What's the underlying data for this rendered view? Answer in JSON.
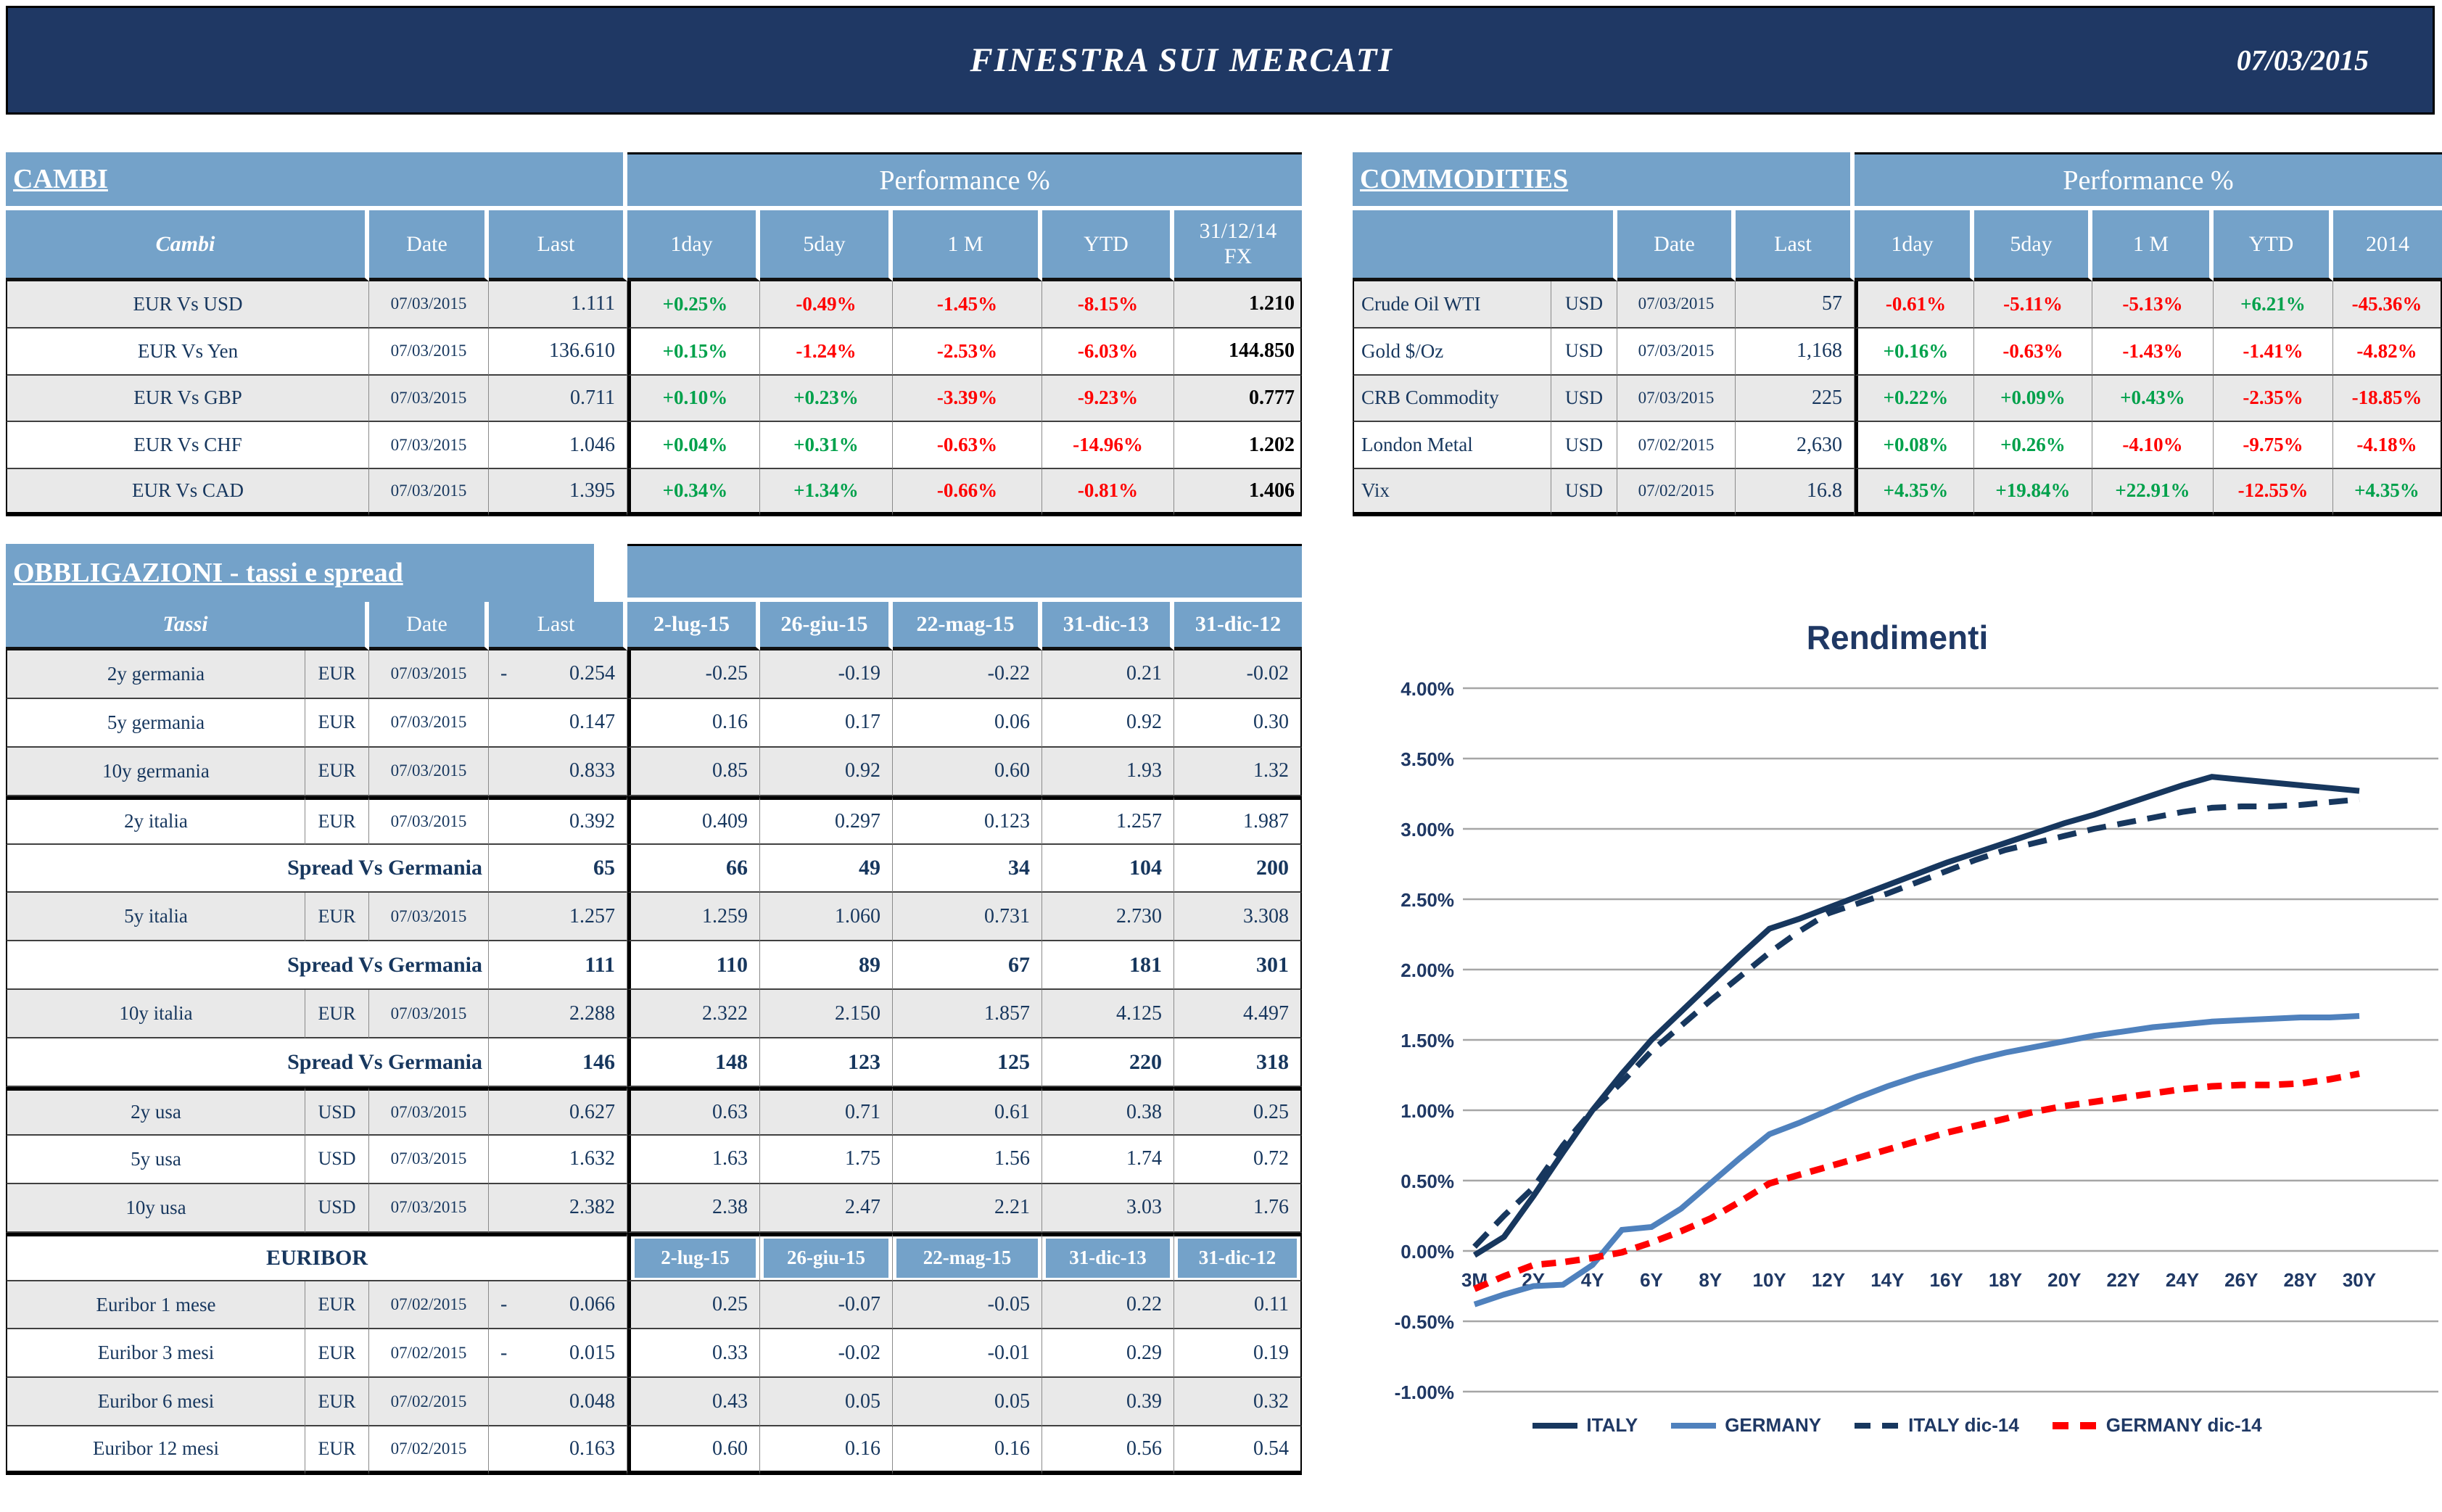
{
  "header": {
    "title": "FINESTRA SUI MERCATI",
    "date": "07/03/2015"
  },
  "colors": {
    "banner": "#1F3864",
    "header_blue": "#74A2C9",
    "row_shade": "#E9E9E9",
    "text_navy": "#17375E",
    "green": "#00A14B",
    "red": "#FF0000",
    "grid_gray": "#A6A6A6",
    "black": "#000000"
  },
  "cambi": {
    "title": "CAMBI",
    "performance_label": "Performance  %",
    "columns": [
      "Cambi",
      "Date",
      "Last",
      "1day",
      "5day",
      "1 M",
      "YTD",
      "31/12/14 FX"
    ],
    "rows": [
      {
        "name": "EUR Vs USD",
        "date": "07/03/2015",
        "last": "1.111",
        "perf": [
          "+0.25%",
          "-0.49%",
          "-1.45%",
          "-8.15%"
        ],
        "fx": "1.210",
        "shaded": true
      },
      {
        "name": "EUR Vs Yen",
        "date": "07/03/2015",
        "last": "136.610",
        "perf": [
          "+0.15%",
          "-1.24%",
          "-2.53%",
          "-6.03%"
        ],
        "fx": "144.850",
        "shaded": false
      },
      {
        "name": "EUR Vs GBP",
        "date": "07/03/2015",
        "last": "0.711",
        "perf": [
          "+0.10%",
          "+0.23%",
          "-3.39%",
          "-9.23%"
        ],
        "fx": "0.777",
        "shaded": true
      },
      {
        "name": "EUR Vs CHF",
        "date": "07/03/2015",
        "last": "1.046",
        "perf": [
          "+0.04%",
          "+0.31%",
          "-0.63%",
          "-14.96%"
        ],
        "fx": "1.202",
        "shaded": false
      },
      {
        "name": "EUR Vs CAD",
        "date": "07/03/2015",
        "last": "1.395",
        "perf": [
          "+0.34%",
          "+1.34%",
          "-0.66%",
          "-0.81%"
        ],
        "fx": "1.406",
        "shaded": true
      }
    ]
  },
  "commodities": {
    "title": "COMMODITIES",
    "performance_label": "Performance  %",
    "columns": [
      "",
      "Date",
      "Last",
      "1day",
      "5day",
      "1 M",
      "YTD",
      "2014"
    ],
    "rows": [
      {
        "name": "Crude Oil WTI",
        "ccy": "USD",
        "date": "07/03/2015",
        "last": "57",
        "perf": [
          "-0.61%",
          "-5.11%",
          "-5.13%",
          "+6.21%",
          "-45.36%"
        ],
        "shaded": true
      },
      {
        "name": "Gold $/Oz",
        "ccy": "USD",
        "date": "07/03/2015",
        "last": "1,168",
        "perf": [
          "+0.16%",
          "-0.63%",
          "-1.43%",
          "-1.41%",
          "-4.82%"
        ],
        "shaded": false
      },
      {
        "name": "CRB Commodity",
        "ccy": "USD",
        "date": "07/03/2015",
        "last": "225",
        "perf": [
          "+0.22%",
          "+0.09%",
          "+0.43%",
          "-2.35%",
          "-18.85%"
        ],
        "shaded": true
      },
      {
        "name": "London Metal",
        "ccy": "USD",
        "date": "07/02/2015",
        "last": "2,630",
        "perf": [
          "+0.08%",
          "+0.26%",
          "-4.10%",
          "-9.75%",
          "-4.18%"
        ],
        "shaded": false
      },
      {
        "name": "Vix",
        "ccy": "USD",
        "date": "07/02/2015",
        "last": "16.8",
        "perf": [
          "+4.35%",
          "+19.84%",
          "+22.91%",
          "-12.55%",
          "+4.35%"
        ],
        "shaded": true
      }
    ]
  },
  "obbligazioni": {
    "title": "OBBLIGAZIONI - tassi e spread",
    "columns": [
      "Tassi",
      "Date",
      "Last",
      "2-lug-15",
      "26-giu-15",
      "22-mag-15",
      "31-dic-13",
      "31-dic-12"
    ],
    "rows": [
      {
        "type": "rate",
        "name": "2y germania",
        "ccy": "EUR",
        "date": "07/03/2015",
        "last_sign": "-",
        "last": "0.254",
        "values": [
          "-0.25",
          "-0.19",
          "-0.22",
          "0.21",
          "-0.02"
        ],
        "shaded": true,
        "thick_top": false
      },
      {
        "type": "rate",
        "name": "5y germania",
        "ccy": "EUR",
        "date": "07/03/2015",
        "last_sign": "",
        "last": "0.147",
        "values": [
          "0.16",
          "0.17",
          "0.06",
          "0.92",
          "0.30"
        ],
        "shaded": false,
        "thick_top": false
      },
      {
        "type": "rate",
        "name": "10y germania",
        "ccy": "EUR",
        "date": "07/03/2015",
        "last_sign": "",
        "last": "0.833",
        "values": [
          "0.85",
          "0.92",
          "0.60",
          "1.93",
          "1.32"
        ],
        "shaded": true,
        "thick_top": false
      },
      {
        "type": "rate",
        "name": "2y italia",
        "ccy": "EUR",
        "date": "07/03/2015",
        "last_sign": "",
        "last": "0.392",
        "values": [
          "0.409",
          "0.297",
          "0.123",
          "1.257",
          "1.987"
        ],
        "shaded": false,
        "thick_top": true
      },
      {
        "type": "spread",
        "label": "Spread Vs Germania",
        "last": "65",
        "values": [
          "66",
          "49",
          "34",
          "104",
          "200"
        ]
      },
      {
        "type": "rate",
        "name": "5y italia",
        "ccy": "EUR",
        "date": "07/03/2015",
        "last_sign": "",
        "last": "1.257",
        "values": [
          "1.259",
          "1.060",
          "0.731",
          "2.730",
          "3.308"
        ],
        "shaded": true,
        "thick_top": false
      },
      {
        "type": "spread",
        "label": "Spread Vs Germania",
        "last": "111",
        "values": [
          "110",
          "89",
          "67",
          "181",
          "301"
        ]
      },
      {
        "type": "rate",
        "name": "10y italia",
        "ccy": "EUR",
        "date": "07/03/2015",
        "last_sign": "",
        "last": "2.288",
        "values": [
          "2.322",
          "2.150",
          "1.857",
          "4.125",
          "4.497"
        ],
        "shaded": true,
        "thick_top": false
      },
      {
        "type": "spread",
        "label": "Spread Vs Germania",
        "last": "146",
        "values": [
          "148",
          "123",
          "125",
          "220",
          "318"
        ]
      },
      {
        "type": "rate",
        "name": "2y usa",
        "ccy": "USD",
        "date": "07/03/2015",
        "last_sign": "",
        "last": "0.627",
        "values": [
          "0.63",
          "0.71",
          "0.61",
          "0.38",
          "0.25"
        ],
        "shaded": true,
        "thick_top": true
      },
      {
        "type": "rate",
        "name": "5y usa",
        "ccy": "USD",
        "date": "07/03/2015",
        "last_sign": "",
        "last": "1.632",
        "values": [
          "1.63",
          "1.75",
          "1.56",
          "1.74",
          "0.72"
        ],
        "shaded": false,
        "thick_top": false
      },
      {
        "type": "rate",
        "name": "10y usa",
        "ccy": "USD",
        "date": "07/03/2015",
        "last_sign": "",
        "last": "2.382",
        "values": [
          "2.38",
          "2.47",
          "2.21",
          "3.03",
          "1.76"
        ],
        "shaded": true,
        "thick_top": false
      },
      {
        "type": "euribor_header",
        "label": "EURIBOR",
        "thick_top": true
      },
      {
        "type": "rate",
        "name": "Euribor 1 mese",
        "ccy": "EUR",
        "date": "07/02/2015",
        "last_sign": "-",
        "last": "0.066",
        "values": [
          "0.25",
          "-0.07",
          "-0.05",
          "0.22",
          "0.11"
        ],
        "shaded": true,
        "thick_top": false
      },
      {
        "type": "rate",
        "name": "Euribor 3 mesi",
        "ccy": "EUR",
        "date": "07/02/2015",
        "last_sign": "-",
        "last": "0.015",
        "values": [
          "0.33",
          "-0.02",
          "-0.01",
          "0.29",
          "0.19"
        ],
        "shaded": false,
        "thick_top": false
      },
      {
        "type": "rate",
        "name": "Euribor 6 mesi",
        "ccy": "EUR",
        "date": "07/02/2015",
        "last_sign": "",
        "last": "0.048",
        "values": [
          "0.43",
          "0.05",
          "0.05",
          "0.39",
          "0.32"
        ],
        "shaded": true,
        "thick_top": false
      },
      {
        "type": "rate",
        "name": "Euribor 12 mesi",
        "ccy": "EUR",
        "date": "07/02/2015",
        "last_sign": "",
        "last": "0.163",
        "values": [
          "0.60",
          "0.16",
          "0.16",
          "0.56",
          "0.54"
        ],
        "shaded": false,
        "thick_top": false
      }
    ]
  },
  "chart_data": {
    "type": "line",
    "title": "Rendimenti",
    "xlabel": "",
    "ylabel": "",
    "ylim": [
      -1.0,
      4.0
    ],
    "y_tick_labels": [
      "4.00%",
      "3.50%",
      "3.00%",
      "2.50%",
      "2.00%",
      "1.50%",
      "1.00%",
      "0.50%",
      "0.00%",
      "-0.50%",
      "-1.00%"
    ],
    "x": [
      "3M",
      "1Y",
      "2Y",
      "3Y",
      "4Y",
      "5Y",
      "6Y",
      "7Y",
      "8Y",
      "9Y",
      "10Y",
      "11Y",
      "12Y",
      "13Y",
      "14Y",
      "15Y",
      "16Y",
      "17Y",
      "18Y",
      "19Y",
      "20Y",
      "21Y",
      "22Y",
      "23Y",
      "24Y",
      "25Y",
      "26Y",
      "27Y",
      "28Y",
      "29Y",
      "30Y"
    ],
    "tick_labels": [
      "3M",
      "2Y",
      "4Y",
      "6Y",
      "8Y",
      "10Y",
      "12Y",
      "14Y",
      "16Y",
      "18Y",
      "20Y",
      "22Y",
      "24Y",
      "26Y",
      "28Y",
      "30Y"
    ],
    "grid": true,
    "legend_position": "bottom",
    "series": [
      {
        "name": "ITALY",
        "color": "#17375E",
        "dash": "",
        "width": 8,
        "values": [
          -0.03,
          0.1,
          0.39,
          0.7,
          1.0,
          1.26,
          1.5,
          1.7,
          1.9,
          2.1,
          2.29,
          2.36,
          2.44,
          2.52,
          2.6,
          2.68,
          2.76,
          2.83,
          2.9,
          2.97,
          3.04,
          3.1,
          3.17,
          3.24,
          3.31,
          3.37,
          3.35,
          3.33,
          3.31,
          3.29,
          3.27
        ]
      },
      {
        "name": "GERMANY",
        "color": "#4F81BD",
        "dash": "",
        "width": 8,
        "values": [
          -0.38,
          -0.31,
          -0.25,
          -0.24,
          -0.1,
          0.15,
          0.17,
          0.3,
          0.48,
          0.66,
          0.83,
          0.91,
          1.0,
          1.09,
          1.17,
          1.24,
          1.3,
          1.36,
          1.41,
          1.45,
          1.49,
          1.53,
          1.56,
          1.59,
          1.61,
          1.63,
          1.64,
          1.65,
          1.66,
          1.66,
          1.67
        ]
      },
      {
        "name": "ITALY dic-14",
        "color": "#17375E",
        "dash": "26 16",
        "width": 8,
        "values": [
          0.03,
          0.25,
          0.45,
          0.75,
          1.0,
          1.2,
          1.42,
          1.6,
          1.78,
          1.95,
          2.12,
          2.27,
          2.4,
          2.47,
          2.54,
          2.62,
          2.7,
          2.78,
          2.85,
          2.9,
          2.95,
          3.0,
          3.04,
          3.08,
          3.12,
          3.15,
          3.16,
          3.16,
          3.17,
          3.19,
          3.21
        ]
      },
      {
        "name": "GERMANY dic-14",
        "color": "#FF0000",
        "dash": "20 13",
        "width": 9,
        "values": [
          -0.27,
          -0.18,
          -0.1,
          -0.08,
          -0.05,
          -0.01,
          0.06,
          0.14,
          0.23,
          0.35,
          0.48,
          0.54,
          0.6,
          0.66,
          0.72,
          0.78,
          0.84,
          0.89,
          0.94,
          0.99,
          1.03,
          1.06,
          1.09,
          1.12,
          1.15,
          1.17,
          1.18,
          1.18,
          1.19,
          1.22,
          1.26
        ]
      }
    ]
  }
}
